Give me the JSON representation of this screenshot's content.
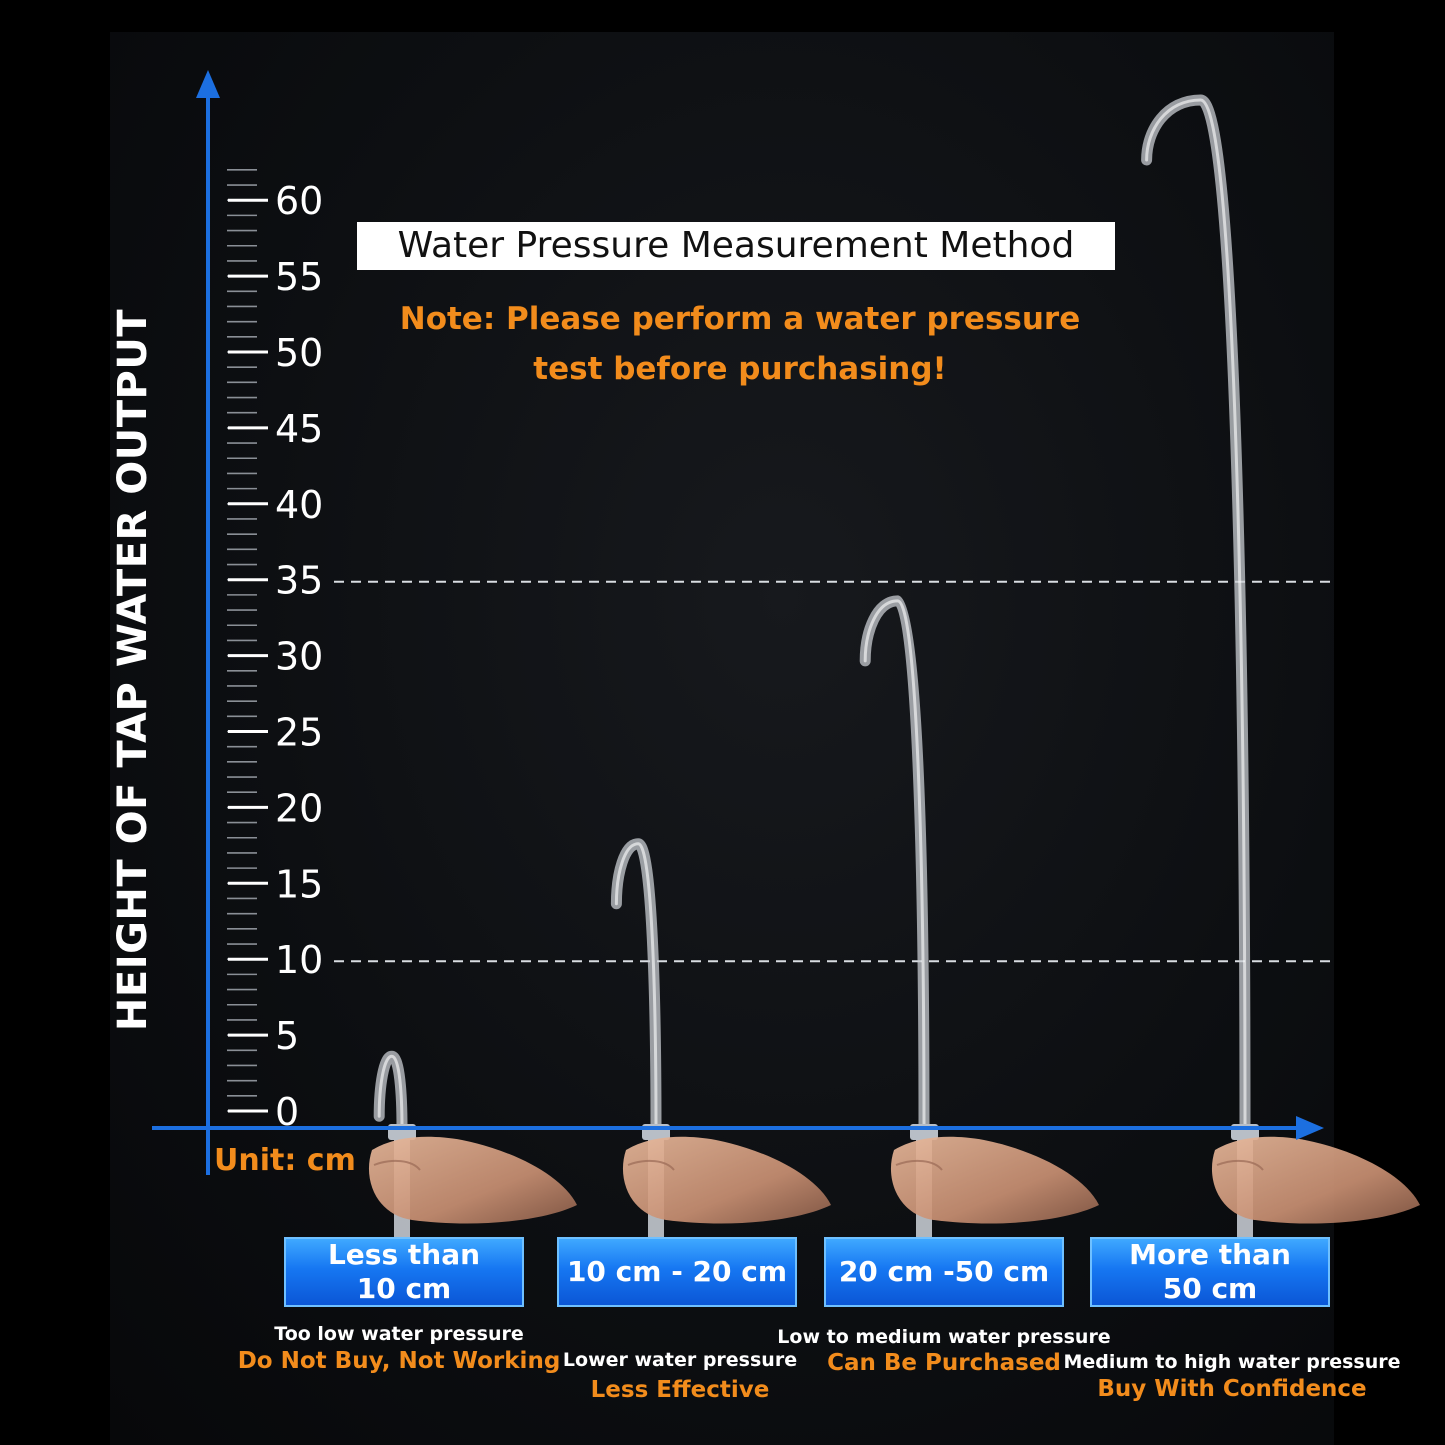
{
  "chart_data": {
    "type": "bar",
    "title": "Water Pressure Measurement Method",
    "subtitle": [
      "Note: Please perform a water pressure",
      "test before purchasing!"
    ],
    "ylabel": "HEIGHT OF TAP WATER OUTPUT",
    "unit_label": "Unit: cm",
    "ylim": [
      0,
      60
    ],
    "yticks": [
      "0",
      "5",
      "10",
      "15",
      "20",
      "25",
      "30",
      "35",
      "40",
      "45",
      "50",
      "55",
      "60"
    ],
    "reference_lines": [
      10,
      35
    ],
    "grid": false,
    "categories": [
      {
        "label": "Less than\n10 cm",
        "description": "Too low water pressure",
        "verdict": "Do Not Buy, Not Working",
        "jet_height": 4
      },
      {
        "label": "10 cm - 20 cm",
        "description": "Lower water pressure",
        "verdict": "Less Effective",
        "jet_height": 18
      },
      {
        "label": "20 cm -50 cm",
        "description": "Low to medium water pressure",
        "verdict": "Can Be Purchased",
        "jet_height": 34
      },
      {
        "label": "More than\n50 cm",
        "description": "Medium to high water pressure",
        "verdict": "Buy With Confidence",
        "jet_height": 67
      }
    ]
  },
  "colors": {
    "background": "#000000",
    "axis": "#1c6fe0",
    "accent_orange": "#f28c1c",
    "label_box": "#1677f2",
    "water_jet": "#c8ccd2"
  }
}
